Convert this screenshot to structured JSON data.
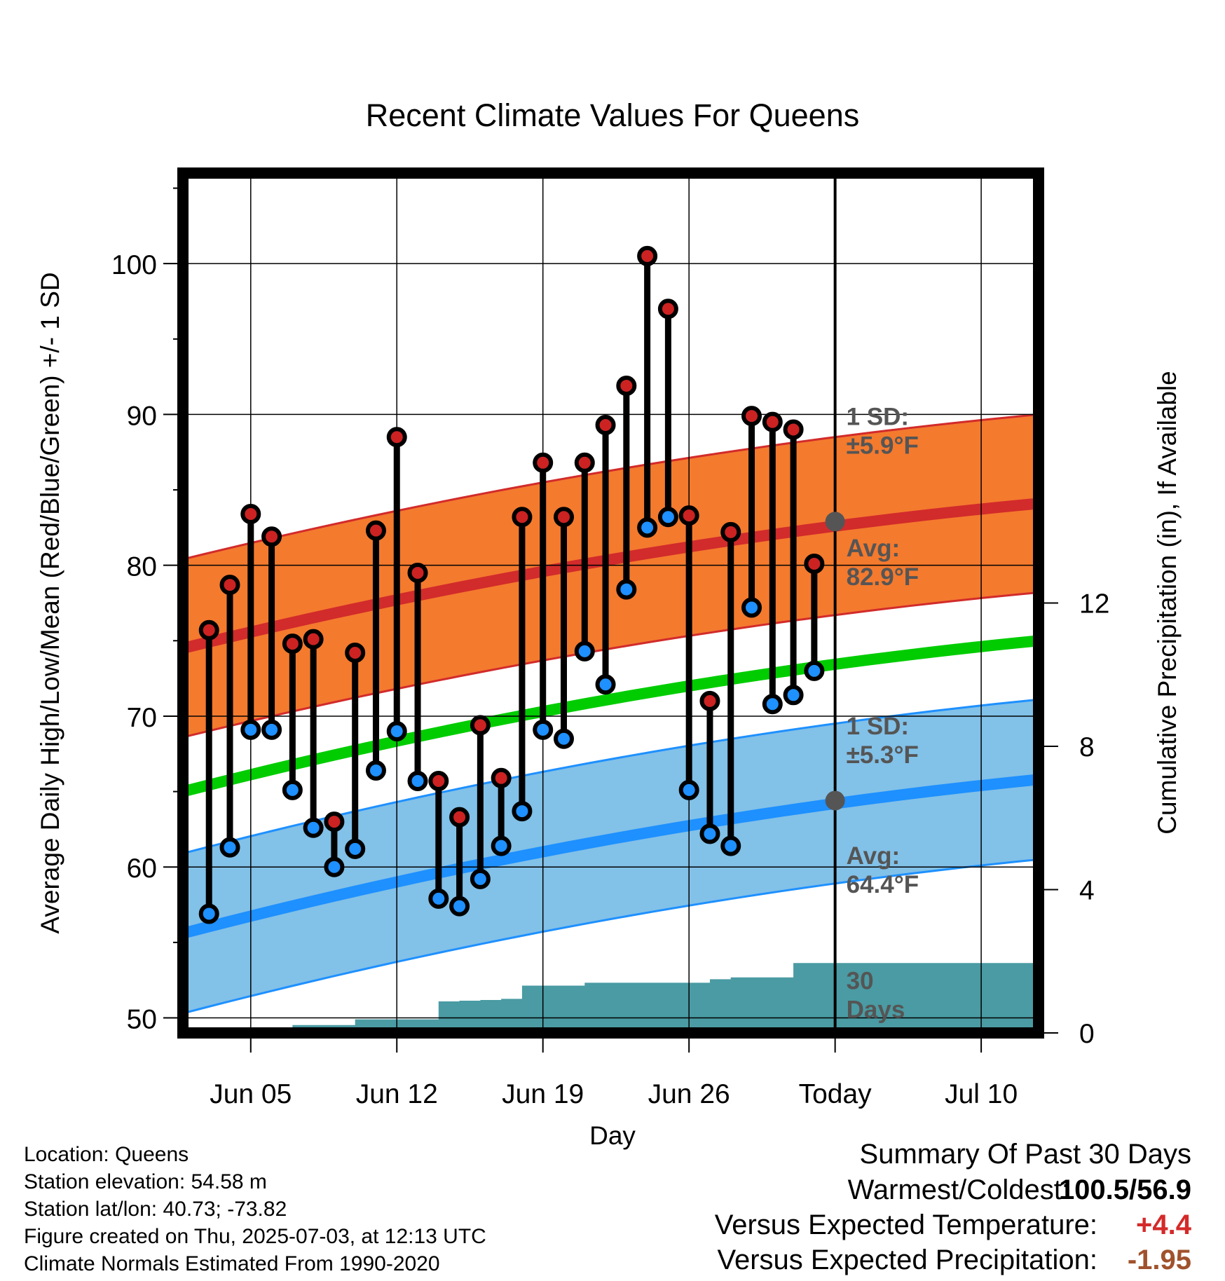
{
  "chart_data": {
    "type": "line",
    "title": "Recent Climate Values For Queens",
    "xlabel": "Day",
    "ylabel": "Average Daily High/Low/Mean (Red/Blue/Green) +/- 1 SD",
    "y2label": "Cumulative Precipitation (in), If Available",
    "ylim": [
      49,
      106
    ],
    "y2lim": [
      0,
      24
    ],
    "xlim": [
      "Jun 01 18:00",
      "Jul 12 18:00"
    ],
    "x_ticks": [
      "Jun 05",
      "Jun 12",
      "Jun 19",
      "Jun 26",
      "Today",
      "Jul 10"
    ],
    "y_ticks": [
      50,
      60,
      70,
      80,
      90,
      100
    ],
    "y2_ticks": [
      0,
      4,
      8,
      12
    ],
    "grid": true,
    "today": "Jul 03",
    "days": [
      "Jun 03",
      "Jun 04",
      "Jun 05",
      "Jun 06",
      "Jun 07",
      "Jun 08",
      "Jun 09",
      "Jun 10",
      "Jun 11",
      "Jun 12",
      "Jun 13",
      "Jun 14",
      "Jun 15",
      "Jun 16",
      "Jun 17",
      "Jun 18",
      "Jun 19",
      "Jun 20",
      "Jun 21",
      "Jun 22",
      "Jun 23",
      "Jun 24",
      "Jun 25",
      "Jun 26",
      "Jun 27",
      "Jun 28",
      "Jun 29",
      "Jun 30",
      "Jul 01",
      "Jul 02"
    ],
    "series": [
      {
        "name": "High",
        "color": "#cc2222",
        "values": [
          75.7,
          78.7,
          83.4,
          81.9,
          74.8,
          75.1,
          63.0,
          74.2,
          82.3,
          88.5,
          79.5,
          65.7,
          63.3,
          69.4,
          65.9,
          83.2,
          86.8,
          83.2,
          86.8,
          89.3,
          91.9,
          100.5,
          97.0,
          83.3,
          71.0,
          82.2,
          89.9,
          89.5,
          89.0,
          80.1
        ]
      },
      {
        "name": "Low",
        "color": "#2288ee",
        "values": [
          56.9,
          61.3,
          69.1,
          69.1,
          65.1,
          62.6,
          60.0,
          61.2,
          66.4,
          69.0,
          65.7,
          57.9,
          57.4,
          59.2,
          61.4,
          63.7,
          69.1,
          68.5,
          74.3,
          72.1,
          78.4,
          82.5,
          83.2,
          65.1,
          62.2,
          61.4,
          77.2,
          70.8,
          71.4,
          73.0
        ]
      }
    ],
    "normals": {
      "x": [
        "Jun 01 18:00",
        "Jul 12 18:00"
      ],
      "high_avg": [
        74.5,
        84.1
      ],
      "low_avg": [
        55.6,
        65.8
      ],
      "mean_avg": [
        65.0,
        75.0
      ],
      "high_sd": 5.9,
      "low_sd": 5.3
    },
    "precip": {
      "days": [
        "Jun 06",
        "Jun 07",
        "Jun 08",
        "Jun 09",
        "Jun 10",
        "Jun 11",
        "Jun 12",
        "Jun 13",
        "Jun 14",
        "Jun 15",
        "Jun 16",
        "Jun 17",
        "Jun 18",
        "Jun 19",
        "Jun 20",
        "Jun 21",
        "Jun 22",
        "Jun 23",
        "Jun 24",
        "Jun 25",
        "Jun 26",
        "Jun 27",
        "Jun 28",
        "Jun 29",
        "Jun 30",
        "Jul 01",
        "Jul 02"
      ],
      "values": [
        0.02,
        0.22,
        0.22,
        0.22,
        0.38,
        0.38,
        0.38,
        0.38,
        0.88,
        0.9,
        0.92,
        0.95,
        1.32,
        1.32,
        1.32,
        1.4,
        1.4,
        1.4,
        1.4,
        1.4,
        1.4,
        1.5,
        1.55,
        1.55,
        1.55,
        1.95,
        1.95
      ]
    },
    "annotations": {
      "high_sd": [
        "1 SD:",
        "±5.9°F"
      ],
      "high_avg": [
        "Avg:",
        "82.9°F"
      ],
      "low_sd": [
        "1 SD:",
        "±5.3°F"
      ],
      "low_avg": [
        "Avg:",
        "64.4°F"
      ],
      "precip": [
        "30",
        "Days"
      ],
      "today_high_avg": 82.9,
      "today_low_avg": 64.4
    }
  },
  "info": {
    "location": "Location: Queens",
    "elevation": "Station elevation: 54.58 m",
    "latlon": "Station lat/lon: 40.73; -73.82",
    "created": "Figure created on Thu, 2025-07-03, at 12:13 UTC",
    "normals": "Climate Normals Estimated From 1990-2020"
  },
  "summary": {
    "title": "Summary Of Past 30 Days",
    "warm_cold_label": "Warmest/Coldest:",
    "warm_cold_value": "100.5/56.9",
    "temp_label": "Versus Expected Temperature:",
    "temp_value": "+4.4",
    "temp_color": "#d42a2a",
    "precip_label": "Versus Expected Precipitation:",
    "precip_value": "-1.95",
    "precip_color": "#a0522d"
  },
  "colors": {
    "high_band": "#f47a2e",
    "high_line": "#d22b2b",
    "low_band": "#82c1e8",
    "low_line": "#1e90ff",
    "mean_line": "#00cc00",
    "precip": "#4a9ba3",
    "marker_high": "#cc2222",
    "marker_low": "#1e90ff",
    "avg_dot": "#555555"
  }
}
